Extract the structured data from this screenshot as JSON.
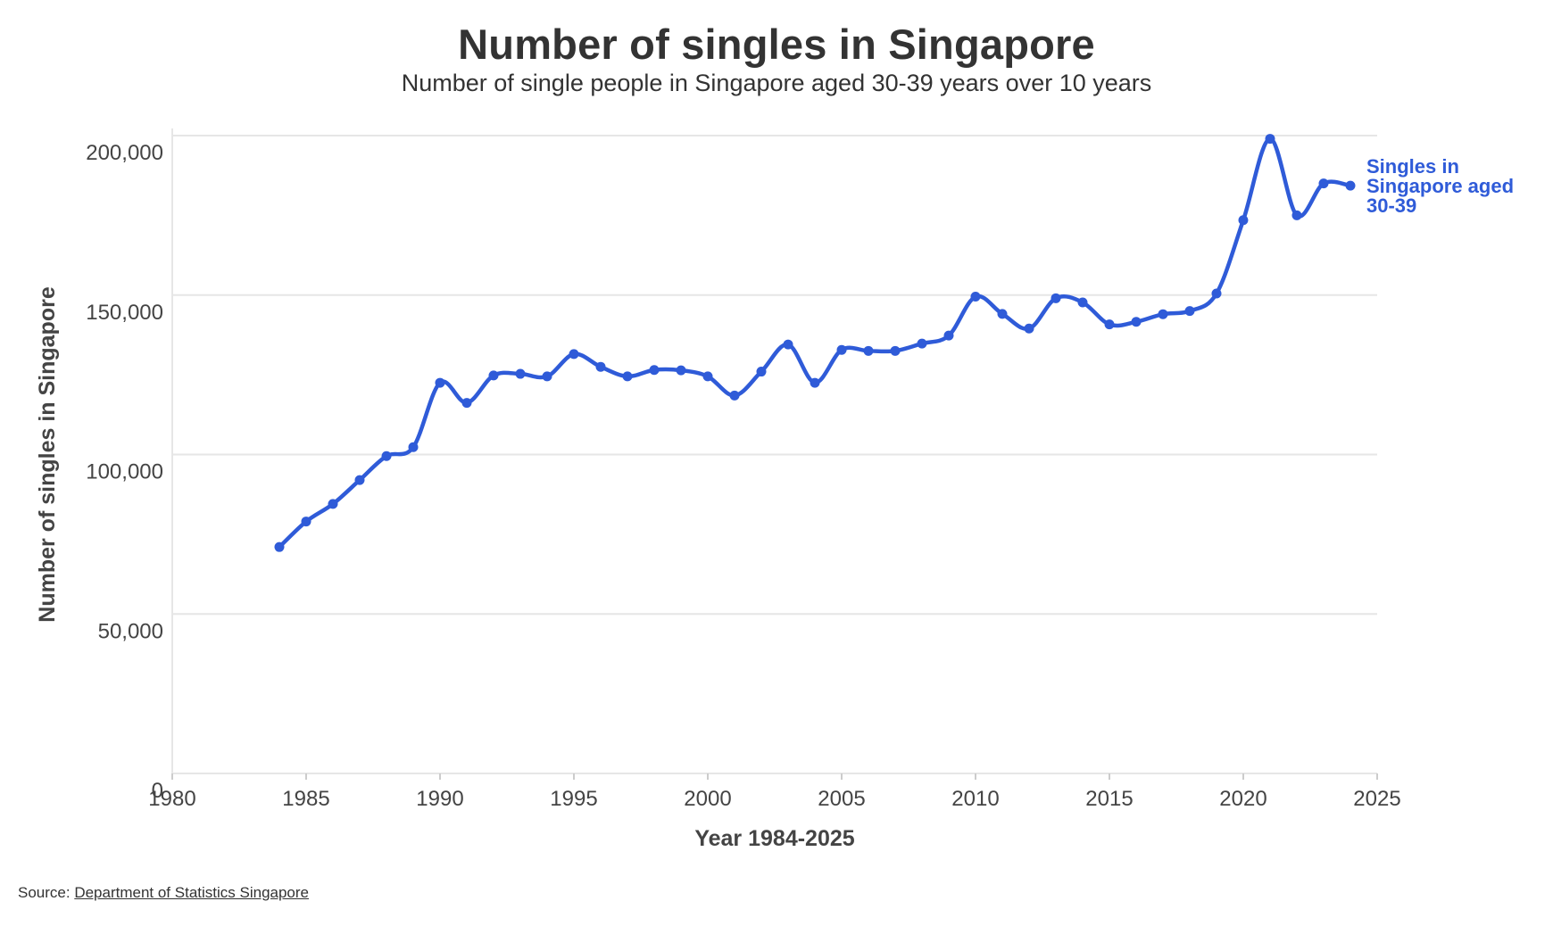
{
  "title": "Number of singles in Singapore",
  "subtitle": "Number of single people in Singapore aged 30-39 years over 10 years",
  "source": {
    "prefix": "Source: ",
    "link_text": "Department of Statistics Singapore"
  },
  "colors": {
    "series": "#2F5BD8",
    "grid": "#e6e6e6",
    "text": "#333333"
  },
  "chart_data": {
    "type": "line",
    "title": "Number of singles in Singapore",
    "subtitle": "Number of single people in Singapore aged 30-39 years over 10 years",
    "xlabel": "Year 1984-2025",
    "ylabel": "Number of singles in Singapore",
    "xlim": [
      1980,
      2025
    ],
    "ylim": [
      0,
      200000
    ],
    "x_ticks": [
      1980,
      1985,
      1990,
      1995,
      2000,
      2005,
      2010,
      2015,
      2020,
      2025
    ],
    "y_ticks": [
      0,
      50000,
      100000,
      150000,
      200000
    ],
    "y_tick_labels": [
      "0",
      "50,000",
      "100,000",
      "150,000",
      "200,000"
    ],
    "grid": true,
    "legend": "direct label at line end",
    "series": [
      {
        "name": "Singles in Singapore aged 30-39",
        "x": [
          1984,
          1985,
          1986,
          1987,
          1988,
          1989,
          1990,
          1991,
          1992,
          1993,
          1994,
          1995,
          1996,
          1997,
          1998,
          1999,
          2000,
          2001,
          2002,
          2003,
          2004,
          2005,
          2006,
          2007,
          2008,
          2009,
          2010,
          2011,
          2012,
          2013,
          2014,
          2015,
          2016,
          2017,
          2018,
          2019,
          2020,
          2021,
          2022,
          2023,
          2024
        ],
        "values": [
          71000,
          79000,
          84500,
          92000,
          99500,
          102300,
          122500,
          116200,
          124800,
          125300,
          124500,
          131500,
          127500,
          124500,
          126500,
          126400,
          124500,
          118500,
          126000,
          134500,
          122500,
          132800,
          132500,
          132500,
          134800,
          137300,
          149500,
          144100,
          139500,
          149000,
          147700,
          140800,
          141600,
          144000,
          145000,
          150500,
          173500,
          199000,
          175000,
          185000,
          184300
        ]
      }
    ]
  }
}
